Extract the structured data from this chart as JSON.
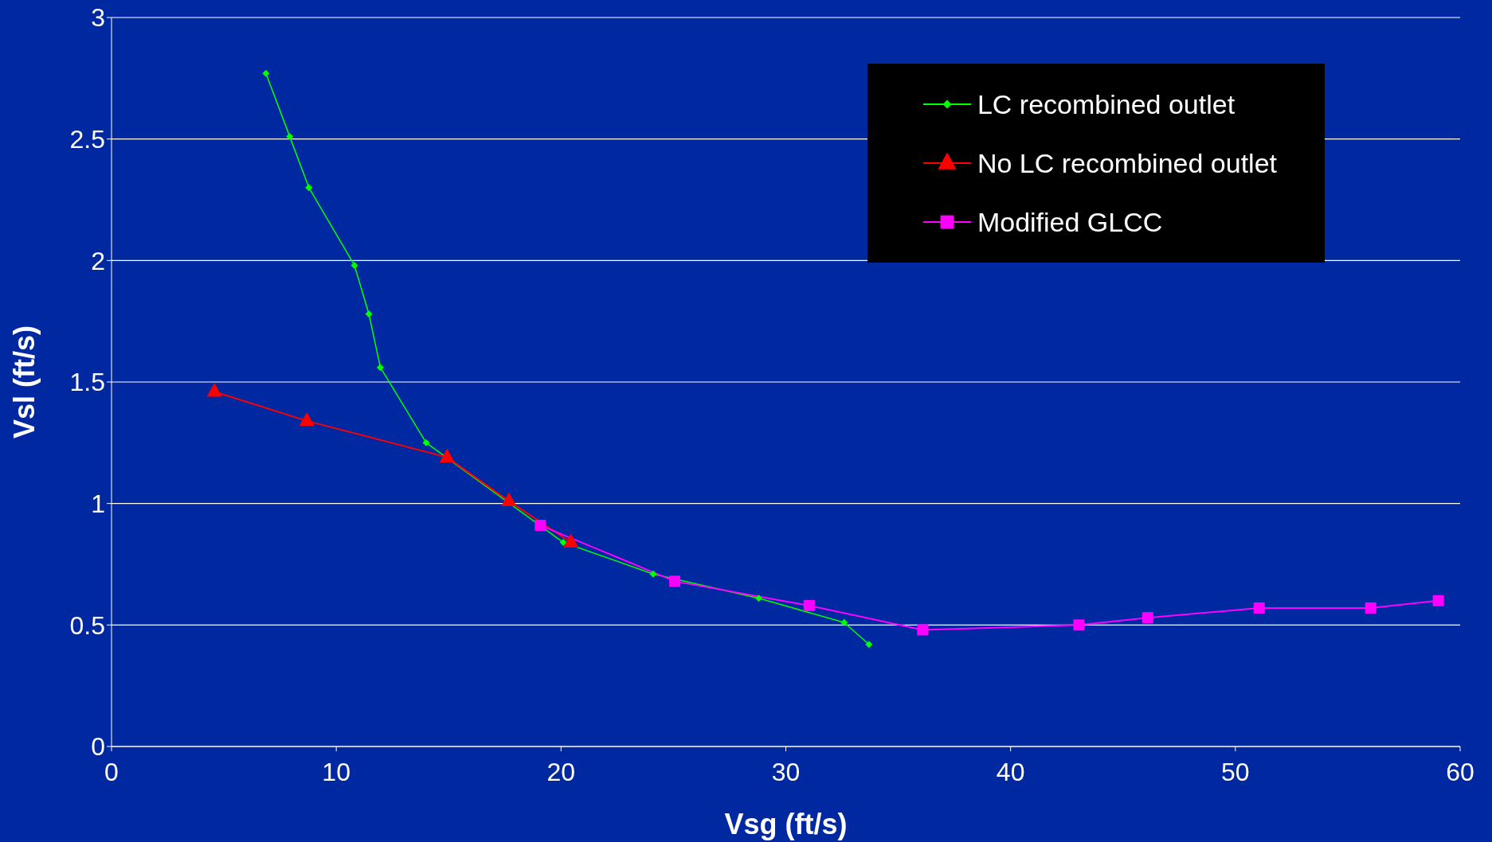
{
  "chart_data": {
    "type": "line",
    "xlabel": "Vsg (ft/s)",
    "ylabel": "Vsl (ft/s)",
    "xlim": [
      0,
      60
    ],
    "xticks": [
      0,
      10,
      20,
      30,
      40,
      50,
      60
    ],
    "ylim": [
      0,
      3
    ],
    "yticks": [
      0,
      0.5,
      1,
      1.5,
      2,
      2.5,
      3
    ],
    "grid": "y",
    "legend": "top right",
    "series": [
      {
        "name": "LC recombined outlet",
        "color": "#00ff00",
        "marker": "diamond",
        "x": [
          6.87,
          7.93,
          8.78,
          10.81,
          11.45,
          11.96,
          14.0,
          14.93,
          17.68,
          19.08,
          20.1,
          24.1,
          28.8,
          32.6,
          33.7
        ],
        "values": [
          2.77,
          2.51,
          2.3,
          1.98,
          1.78,
          1.56,
          1.25,
          null,
          null,
          null,
          0.84,
          0.71,
          0.61,
          0.51,
          0.42
        ]
      },
      {
        "name": "No LC recombined outlet",
        "color": "#ff0000",
        "marker": "triangle",
        "x": [
          4.58,
          8.69,
          14.93,
          17.68,
          20.44
        ],
        "values": [
          1.46,
          1.34,
          1.19,
          1.01,
          0.84
        ]
      },
      {
        "name": "Modified GLCC",
        "color": "#ff00ff",
        "marker": "square",
        "x": [
          19.08,
          25.06,
          31.04,
          36.09,
          43.04,
          46.1,
          51.06,
          56.02,
          59.03
        ],
        "values": [
          0.91,
          0.68,
          0.58,
          0.48,
          0.5,
          0.53,
          0.57,
          0.57,
          0.6
        ]
      }
    ]
  }
}
